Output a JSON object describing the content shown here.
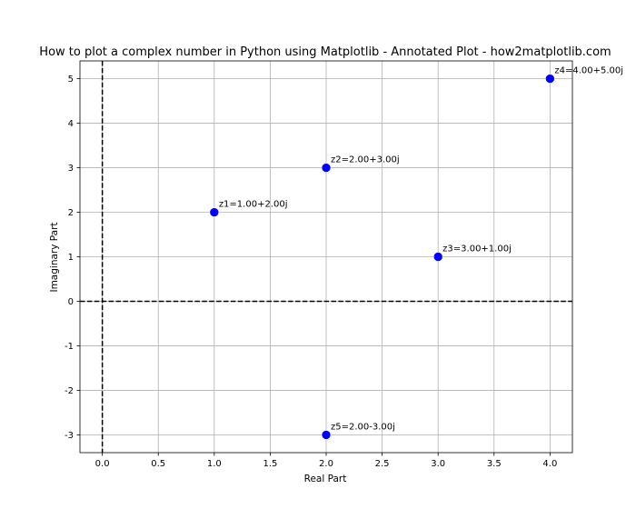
{
  "chart_data": {
    "type": "scatter",
    "title": "How to plot a complex number in Python using Matplotlib - Annotated Plot - how2matplotlib.com",
    "xlabel": "Real Part",
    "ylabel": "Imaginary Part",
    "xlim": [
      -0.2,
      4.2
    ],
    "ylim": [
      -3.4,
      5.4
    ],
    "xticks": [
      0.0,
      0.5,
      1.0,
      1.5,
      2.0,
      2.5,
      3.0,
      3.5,
      4.0
    ],
    "yticks": [
      -3,
      -2,
      -1,
      0,
      1,
      2,
      3,
      4,
      5
    ],
    "xtick_labels": [
      "0.0",
      "0.5",
      "1.0",
      "1.5",
      "2.0",
      "2.5",
      "3.0",
      "3.5",
      "4.0"
    ],
    "ytick_labels": [
      "-3",
      "-2",
      "-1",
      "0",
      "1",
      "2",
      "3",
      "4",
      "5"
    ],
    "grid": true,
    "reference_lines": {
      "horizontal_y": 0,
      "vertical_x": 0,
      "style": "dashed",
      "color": "#000000"
    },
    "series": [
      {
        "color": "#0000ff",
        "points": [
          {
            "x": 1,
            "y": 2,
            "label": "z1=1.00+2.00j"
          },
          {
            "x": 2,
            "y": 3,
            "label": "z2=2.00+3.00j"
          },
          {
            "x": 3,
            "y": 1,
            "label": "z3=3.00+1.00j"
          },
          {
            "x": 4,
            "y": 5,
            "label": "z4=4.00+5.00j"
          },
          {
            "x": 2,
            "y": -3,
            "label": "z5=2.00-3.00j"
          }
        ]
      }
    ]
  }
}
